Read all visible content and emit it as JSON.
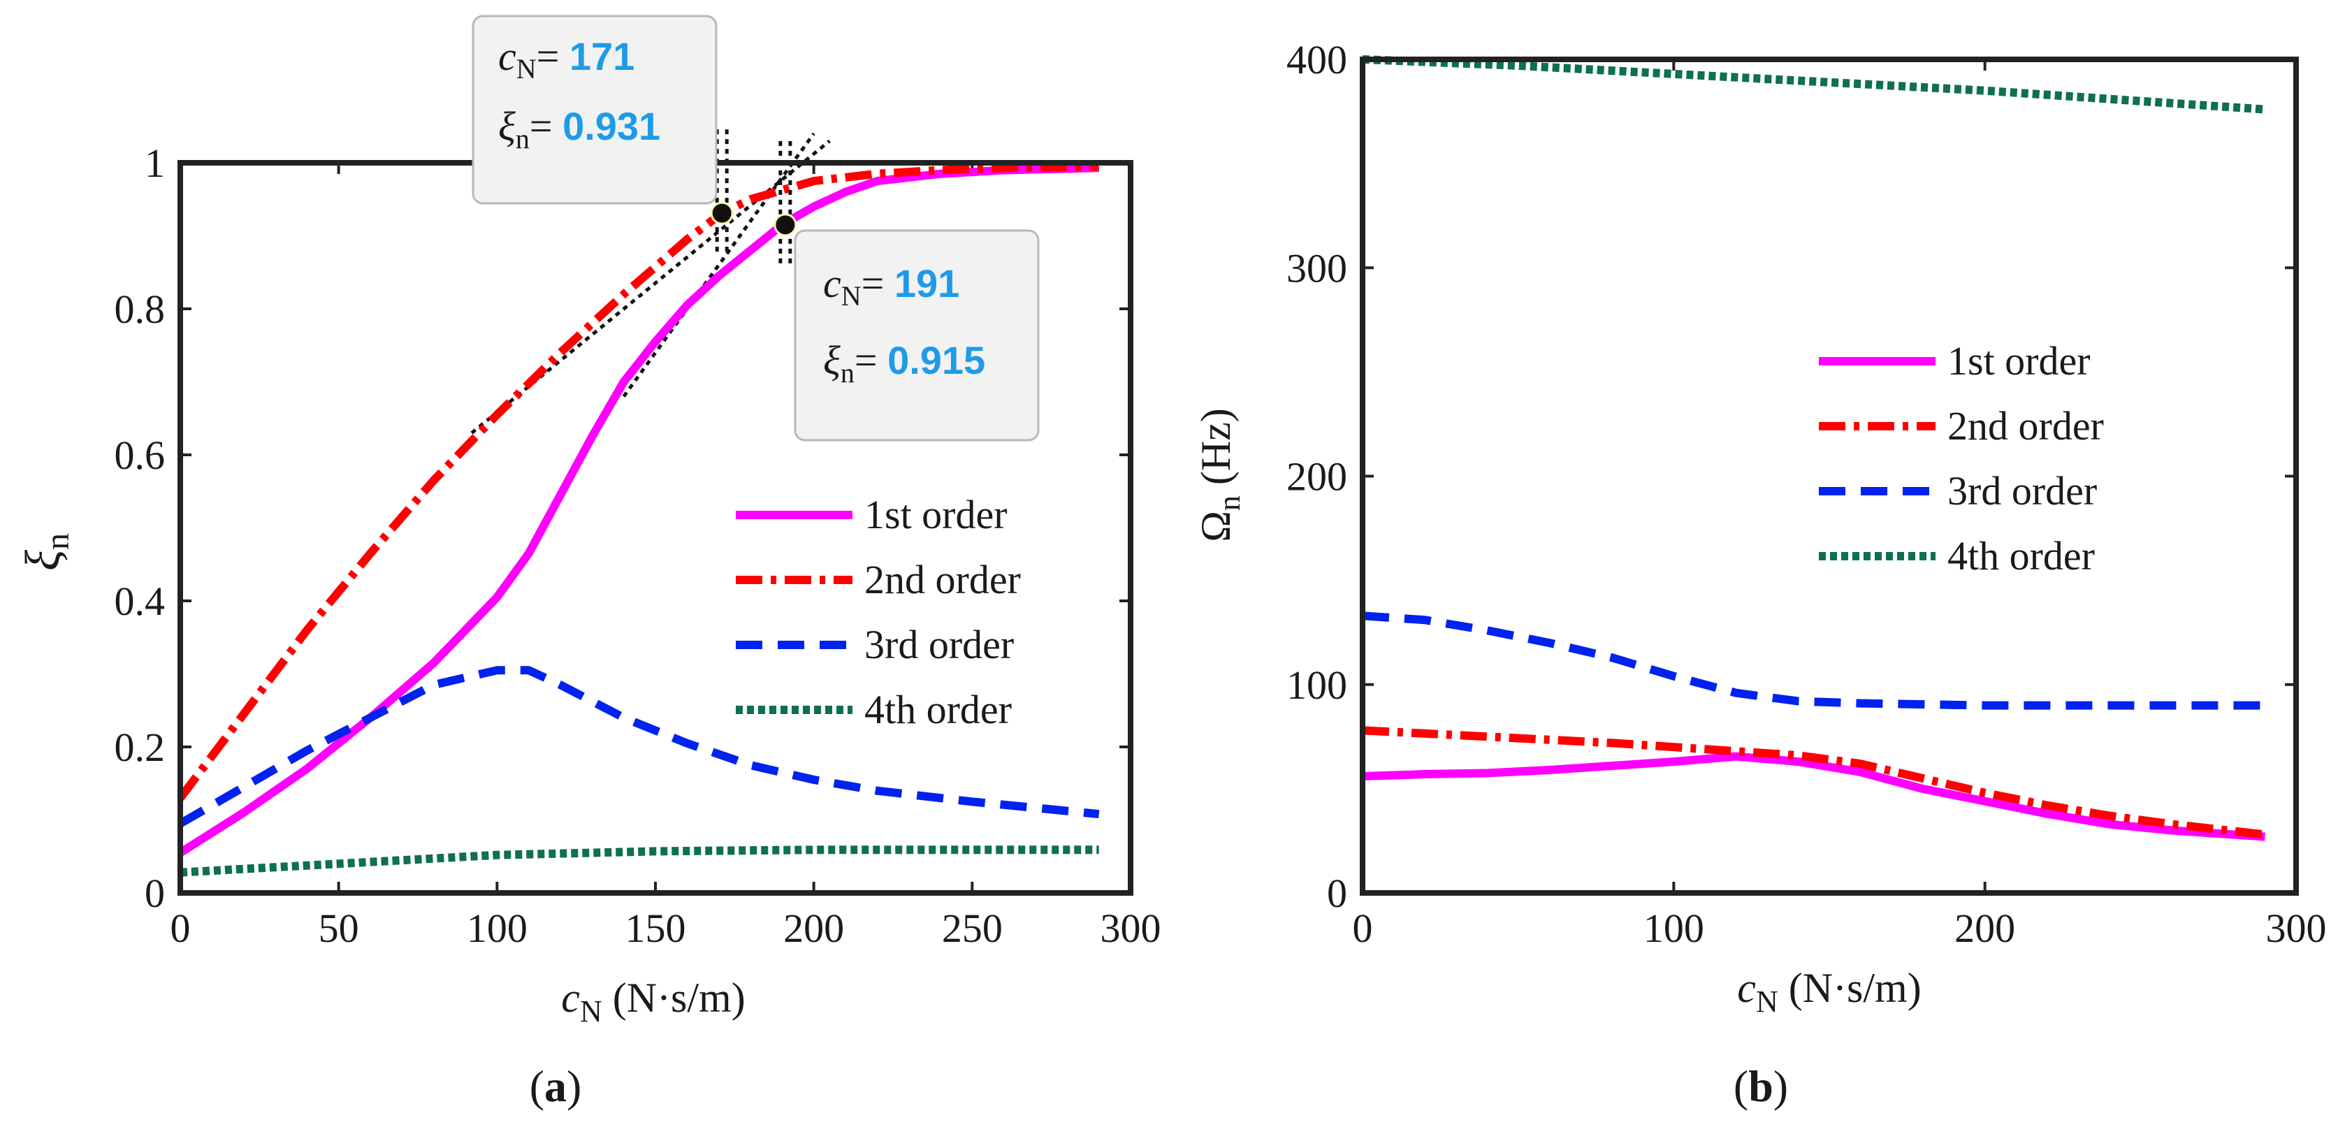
{
  "colors": {
    "first": "#ff00ff",
    "second": "#ff0000",
    "third": "#0022ee",
    "fourth": "#0e7050",
    "annotation_value": "#1e9be8"
  },
  "chart_data": [
    {
      "type": "line",
      "panel_label_open": "(",
      "panel_label_letter": "a",
      "panel_label_close": ")",
      "xlabel_main": "c",
      "xlabel_sub": "N",
      "xlabel_unit": " (N·s/m)",
      "ylabel_main": "ξ",
      "ylabel_sub": "n",
      "xlim": [
        0,
        300
      ],
      "ylim": [
        0,
        1
      ],
      "xticks": [
        0,
        50,
        100,
        150,
        200,
        250,
        300
      ],
      "xtick_labels": [
        "0",
        "50",
        "100",
        "150",
        "200",
        "250",
        "300"
      ],
      "yticks": [
        0,
        0.2,
        0.4,
        0.6,
        0.8,
        1
      ],
      "ytick_labels": [
        "0",
        "0.2",
        "0.4",
        "0.6",
        "0.8",
        "1"
      ],
      "legend_position": "lower-right",
      "series": [
        {
          "name": "1st order",
          "key": "first",
          "style": "solid",
          "x": [
            0,
            20,
            40,
            60,
            80,
            100,
            110,
            120,
            130,
            140,
            150,
            160,
            170,
            180,
            190,
            200,
            210,
            220,
            240,
            260,
            290
          ],
          "y": [
            0.055,
            0.11,
            0.17,
            0.24,
            0.315,
            0.405,
            0.465,
            0.545,
            0.625,
            0.7,
            0.755,
            0.805,
            0.845,
            0.88,
            0.915,
            0.94,
            0.96,
            0.975,
            0.985,
            0.99,
            0.993
          ]
        },
        {
          "name": "2nd order",
          "key": "second",
          "style": "dashdot",
          "x": [
            0,
            20,
            40,
            60,
            80,
            100,
            120,
            140,
            160,
            171,
            180,
            200,
            220,
            240,
            260,
            290
          ],
          "y": [
            0.13,
            0.245,
            0.36,
            0.465,
            0.565,
            0.655,
            0.74,
            0.82,
            0.895,
            0.931,
            0.95,
            0.975,
            0.985,
            0.99,
            0.993,
            0.995
          ]
        },
        {
          "name": "3rd order",
          "key": "third",
          "style": "dashed",
          "x": [
            0,
            20,
            40,
            60,
            80,
            100,
            110,
            120,
            140,
            160,
            180,
            200,
            220,
            250,
            290
          ],
          "y": [
            0.095,
            0.145,
            0.195,
            0.24,
            0.285,
            0.305,
            0.305,
            0.285,
            0.24,
            0.205,
            0.175,
            0.155,
            0.14,
            0.125,
            0.108
          ]
        },
        {
          "name": "4th order",
          "key": "fourth",
          "style": "dotted",
          "x": [
            0,
            50,
            100,
            150,
            200,
            250,
            290
          ],
          "y": [
            0.028,
            0.04,
            0.052,
            0.057,
            0.059,
            0.059,
            0.059
          ]
        }
      ],
      "annotations": [
        {
          "c_label": "c",
          "c_sub": "N",
          "c_eq": "= ",
          "c_value": "171",
          "xi_label": "ξ",
          "xi_sub": "n",
          "xi_eq": "= ",
          "xi_value": "0.931",
          "x": 171,
          "y": 0.931
        },
        {
          "c_label": "c",
          "c_sub": "N",
          "c_eq": "= ",
          "c_value": "191",
          "xi_label": "ξ",
          "xi_sub": "n",
          "xi_eq": "= ",
          "xi_value": "0.915",
          "x": 191,
          "y": 0.915
        }
      ],
      "tangent_lines": [
        {
          "x": [
            92,
            205
          ],
          "y": [
            0.63,
            1.03
          ]
        },
        {
          "x": [
            140,
            200
          ],
          "y": [
            0.68,
            1.04
          ]
        }
      ]
    },
    {
      "type": "line",
      "panel_label_open": "(",
      "panel_label_letter": "b",
      "panel_label_close": ")",
      "xlabel_main": "c",
      "xlabel_sub": "N",
      "xlabel_unit": " (N·s/m)",
      "ylabel_main": "Ω",
      "ylabel_sub": "n",
      "ylabel_unit": " (Hz)",
      "xlim": [
        0,
        300
      ],
      "ylim": [
        0,
        400
      ],
      "xticks": [
        0,
        100,
        200,
        300
      ],
      "xtick_labels": [
        "0",
        "100",
        "200",
        "300"
      ],
      "yticks": [
        0,
        100,
        200,
        300,
        400
      ],
      "ytick_labels": [
        "0",
        "100",
        "200",
        "300",
        "400"
      ],
      "legend_position": "center-right",
      "series": [
        {
          "name": "1st order",
          "key": "first",
          "style": "solid",
          "x": [
            0,
            20,
            40,
            60,
            80,
            100,
            120,
            140,
            160,
            180,
            200,
            220,
            240,
            260,
            290
          ],
          "y": [
            56,
            57,
            57.5,
            59,
            61,
            63,
            65.5,
            63,
            58,
            50,
            44,
            38,
            33,
            30,
            27
          ]
        },
        {
          "name": "2nd order",
          "key": "second",
          "style": "dashdot",
          "x": [
            0,
            20,
            40,
            60,
            80,
            100,
            120,
            140,
            160,
            180,
            200,
            220,
            240,
            260,
            290
          ],
          "y": [
            78,
            76.5,
            75,
            73.5,
            72,
            70,
            68,
            66,
            62,
            55,
            48,
            42,
            37,
            33,
            28
          ]
        },
        {
          "name": "3rd order",
          "key": "third",
          "style": "dashed",
          "x": [
            0,
            20,
            40,
            60,
            80,
            100,
            120,
            140,
            160,
            180,
            200,
            220,
            250,
            290
          ],
          "y": [
            133,
            131,
            126,
            120,
            113,
            104,
            96,
            92,
            91,
            90.5,
            90,
            90,
            90,
            90
          ]
        },
        {
          "name": "4th order",
          "key": "fourth",
          "style": "dotted",
          "x": [
            0,
            50,
            100,
            150,
            200,
            250,
            290
          ],
          "y": [
            400,
            397,
            393,
            389,
            385,
            380,
            376
          ]
        }
      ]
    }
  ]
}
